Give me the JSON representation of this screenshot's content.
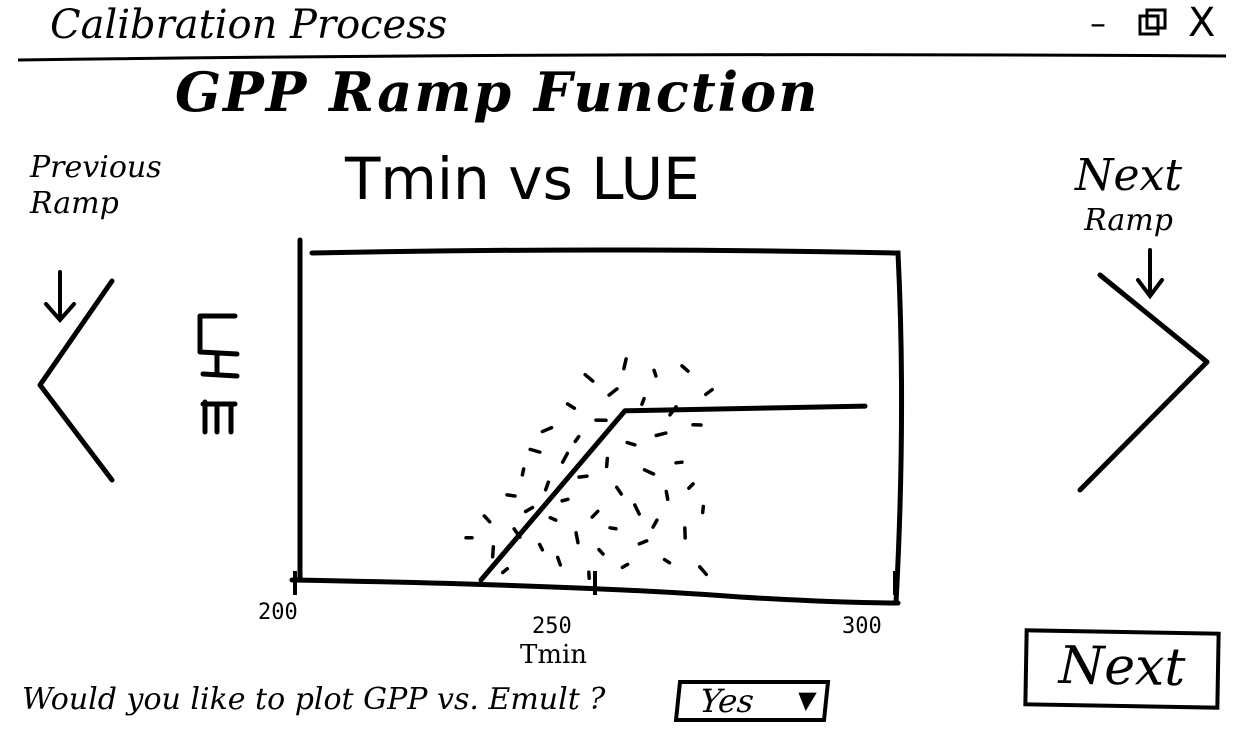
{
  "window": {
    "title": "Calibration Process",
    "minimize_glyph": "–",
    "close_glyph": "X",
    "minimize_icon": "minimize-icon",
    "maximize_icon": "maximize-icon",
    "close_icon": "close-icon"
  },
  "page": {
    "title": "GPP Ramp Function"
  },
  "nav": {
    "previous_label_line1": "Previous",
    "previous_label_line2": "Ramp",
    "next_label_line1": "Next",
    "next_label_line2": "Ramp",
    "previous_icon": "chevron-left-icon",
    "next_icon": "chevron-right-icon",
    "arrow_icon": "arrow-down-icon"
  },
  "chart": {
    "title": "Tmin vs LUE"
  },
  "chart_data": {
    "type": "scatter",
    "title": "Tmin vs LUE",
    "xlabel": "Tmin",
    "ylabel": "LUE",
    "xlim": [
      200,
      300
    ],
    "xticks": [
      "200",
      "250",
      "300"
    ],
    "ramp_line": {
      "x": [
        231,
        255,
        295
      ],
      "y": [
        0.0,
        0.72,
        0.74
      ]
    },
    "points": [
      {
        "x": 229,
        "y": 0.18
      },
      {
        "x": 232,
        "y": 0.26
      },
      {
        "x": 233,
        "y": 0.12
      },
      {
        "x": 235,
        "y": 0.04
      },
      {
        "x": 236,
        "y": 0.36
      },
      {
        "x": 237,
        "y": 0.2
      },
      {
        "x": 238,
        "y": 0.46
      },
      {
        "x": 239,
        "y": 0.3
      },
      {
        "x": 240,
        "y": 0.55
      },
      {
        "x": 241,
        "y": 0.14
      },
      {
        "x": 242,
        "y": 0.4
      },
      {
        "x": 242,
        "y": 0.64
      },
      {
        "x": 243,
        "y": 0.26
      },
      {
        "x": 244,
        "y": 0.08
      },
      {
        "x": 245,
        "y": 0.52
      },
      {
        "x": 245,
        "y": 0.34
      },
      {
        "x": 246,
        "y": 0.74
      },
      {
        "x": 247,
        "y": 0.18
      },
      {
        "x": 247,
        "y": 0.6
      },
      {
        "x": 248,
        "y": 0.44
      },
      {
        "x": 249,
        "y": 0.86
      },
      {
        "x": 249,
        "y": 0.02
      },
      {
        "x": 250,
        "y": 0.28
      },
      {
        "x": 251,
        "y": 0.68
      },
      {
        "x": 251,
        "y": 0.12
      },
      {
        "x": 252,
        "y": 0.5
      },
      {
        "x": 253,
        "y": 0.8
      },
      {
        "x": 253,
        "y": 0.22
      },
      {
        "x": 254,
        "y": 0.38
      },
      {
        "x": 255,
        "y": 0.92
      },
      {
        "x": 255,
        "y": 0.06
      },
      {
        "x": 256,
        "y": 0.58
      },
      {
        "x": 257,
        "y": 0.3
      },
      {
        "x": 258,
        "y": 0.76
      },
      {
        "x": 258,
        "y": 0.16
      },
      {
        "x": 259,
        "y": 0.46
      },
      {
        "x": 260,
        "y": 0.88
      },
      {
        "x": 260,
        "y": 0.24
      },
      {
        "x": 261,
        "y": 0.62
      },
      {
        "x": 262,
        "y": 0.08
      },
      {
        "x": 262,
        "y": 0.36
      },
      {
        "x": 263,
        "y": 0.72
      },
      {
        "x": 264,
        "y": 0.5
      },
      {
        "x": 265,
        "y": 0.9
      },
      {
        "x": 265,
        "y": 0.2
      },
      {
        "x": 266,
        "y": 0.4
      },
      {
        "x": 267,
        "y": 0.66
      },
      {
        "x": 268,
        "y": 0.04
      },
      {
        "x": 268,
        "y": 0.3
      },
      {
        "x": 269,
        "y": 0.8
      }
    ]
  },
  "axis": {
    "ylabel_glyph": "LUE"
  },
  "bottom": {
    "question": "Would you like to plot GPP vs. Emult ?",
    "dropdown_value": "Yes",
    "dropdown_arrow": "▼",
    "next_button": "Next"
  }
}
